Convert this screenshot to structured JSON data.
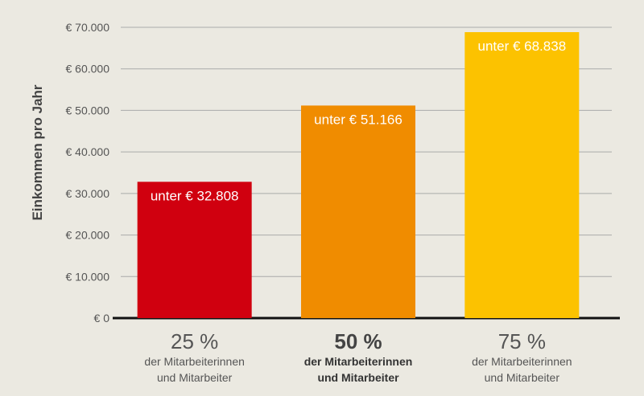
{
  "chart_data": {
    "type": "bar",
    "ylabel": "Einkommen pro Jahr",
    "ylim": [
      0,
      70000
    ],
    "yticks": [
      {
        "value": 0,
        "label": "€ 0"
      },
      {
        "value": 10000,
        "label": "€ 10.000"
      },
      {
        "value": 20000,
        "label": "€ 20.000"
      },
      {
        "value": 30000,
        "label": "€ 30.000"
      },
      {
        "value": 40000,
        "label": "€ 40.000"
      },
      {
        "value": 50000,
        "label": "€ 50.000"
      },
      {
        "value": 60000,
        "label": "€ 60.000"
      },
      {
        "value": 70000,
        "label": "€ 70.000"
      }
    ],
    "grid": true,
    "bars": [
      {
        "percent": "25 %",
        "line1": "der Mitarbeiterinnen",
        "line2": "und Mitarbeiter",
        "value": 32808,
        "label": "unter € 32.808",
        "color": "#d0000f",
        "emphasis": false
      },
      {
        "percent": "50 %",
        "line1": "der Mitarbeiterinnen",
        "line2": "und Mitarbeiter",
        "value": 51166,
        "label": "unter € 51.166",
        "color": "#f08c00",
        "emphasis": true
      },
      {
        "percent": "75 %",
        "line1": "der Mitarbeiterinnen",
        "line2": "und Mitarbeiter",
        "value": 68838,
        "label": "unter € 68.838",
        "color": "#fcc200",
        "emphasis": false
      }
    ]
  },
  "colors": {
    "background": "#ebe9e1",
    "grid": "#aaaaaa",
    "baseline": "#111111"
  }
}
